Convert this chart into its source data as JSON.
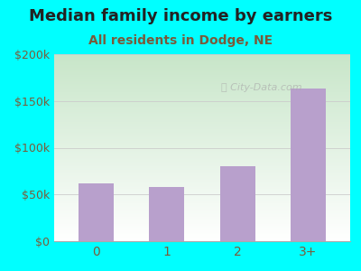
{
  "title": "Median family income by earners",
  "subtitle": "All residents in Dodge, NE",
  "categories": [
    "0",
    "1",
    "2",
    "3+"
  ],
  "values": [
    62000,
    58000,
    80000,
    163000
  ],
  "bar_color": "#B8A0CC",
  "background_color": "#00FFFF",
  "plot_bg_top": "#c8e6c9",
  "plot_bg_bottom": "#ffffff",
  "title_color": "#222222",
  "subtitle_color": "#7a5a3a",
  "axis_label_color": "#7a5c3a",
  "ylim": [
    0,
    200000
  ],
  "yticks": [
    0,
    50000,
    100000,
    150000,
    200000
  ],
  "ytick_labels": [
    "$0",
    "$50k",
    "$100k",
    "$150k",
    "$200k"
  ],
  "watermark": "City-Data.com",
  "title_fontsize": 13,
  "subtitle_fontsize": 10
}
